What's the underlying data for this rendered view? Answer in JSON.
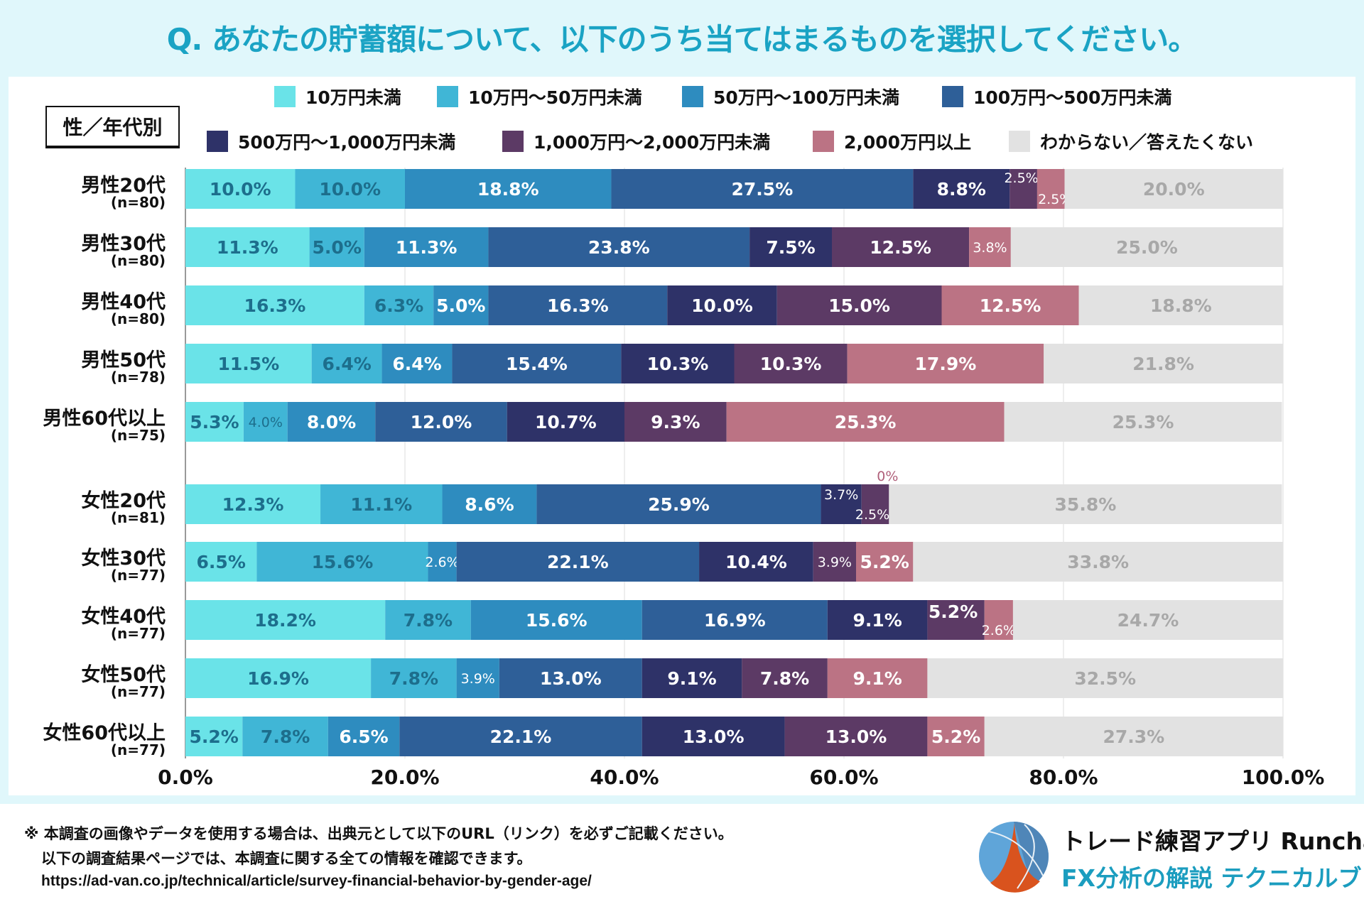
{
  "title": "Q. あなたの貯蓄額について、以下のうち当てはまるものを選択してください。",
  "group_label": "性／年代別",
  "chart_data": {
    "type": "bar",
    "orientation": "horizontal",
    "stacked": true,
    "xlim": [
      0,
      100
    ],
    "x_ticks": [
      "0.0%",
      "20.0%",
      "40.0%",
      "60.0%",
      "80.0%",
      "100.0%"
    ],
    "grid": true,
    "legend_position": "top",
    "categories": [
      {
        "label": "男性20代",
        "n": "(n=80)"
      },
      {
        "label": "男性30代",
        "n": "(n=80)"
      },
      {
        "label": "男性40代",
        "n": "(n=80)"
      },
      {
        "label": "男性50代",
        "n": "(n=78)"
      },
      {
        "label": "男性60代以上",
        "n": "(n=75)"
      },
      {
        "label": "女性20代",
        "n": "(n=81)"
      },
      {
        "label": "女性30代",
        "n": "(n=77)"
      },
      {
        "label": "女性40代",
        "n": "(n=77)"
      },
      {
        "label": "女性50代",
        "n": "(n=77)"
      },
      {
        "label": "女性60代以上",
        "n": "(n=77)"
      }
    ],
    "series": [
      {
        "name": "10万円未満",
        "color": "#6ae3e8",
        "values": [
          10.0,
          11.3,
          16.3,
          11.5,
          5.3,
          12.3,
          6.5,
          18.2,
          16.9,
          5.2
        ]
      },
      {
        "name": "10万円～50万円未満",
        "color": "#40b6d6",
        "values": [
          10.0,
          5.0,
          6.3,
          6.4,
          4.0,
          11.1,
          15.6,
          7.8,
          7.8,
          7.8
        ]
      },
      {
        "name": "50万円～100万円未満",
        "color": "#2e8cbf",
        "values": [
          18.8,
          11.3,
          5.0,
          6.4,
          8.0,
          8.6,
          2.6,
          15.6,
          3.9,
          6.5
        ]
      },
      {
        "name": "100万円～500万円未満",
        "color": "#2e5f98",
        "values": [
          27.5,
          23.8,
          16.3,
          15.4,
          12.0,
          25.9,
          22.1,
          16.9,
          13.0,
          22.1
        ]
      },
      {
        "name": "500万円～1,000万円未満",
        "color": "#2e3268",
        "values": [
          8.8,
          7.5,
          10.0,
          10.3,
          10.7,
          3.7,
          10.4,
          9.1,
          9.1,
          13.0
        ]
      },
      {
        "name": "1,000万円～2,000万円未満",
        "color": "#5c3a65",
        "values": [
          2.5,
          12.5,
          15.0,
          10.3,
          9.3,
          2.5,
          3.9,
          5.2,
          7.8,
          13.0
        ]
      },
      {
        "name": "2,000万円以上",
        "color": "#bb7384",
        "values": [
          2.5,
          3.8,
          12.5,
          17.9,
          25.3,
          0,
          5.2,
          2.6,
          9.1,
          5.2
        ]
      },
      {
        "name": "わからない／答えたくない",
        "color": "#e2e2e2",
        "values": [
          20.0,
          25.0,
          18.8,
          21.8,
          25.3,
          35.8,
          33.8,
          24.7,
          32.5,
          27.3
        ]
      }
    ]
  },
  "footer": {
    "note1": "※ 本調査の画像やデータを使用する場合は、出典元として以下のURL（リンク）を必ずご記載ください。",
    "note2": "以下の調査結果ページでは、本調査に関する全ての情報を確認できます。",
    "url": "https://ad-van.co.jp/technical/article/survey-financial-behavior-by-gender-age/"
  },
  "logo": {
    "line1": "トレード練習アプリ  Runcha",
    "line2": "FX分析の解説  テクニカルブック"
  }
}
